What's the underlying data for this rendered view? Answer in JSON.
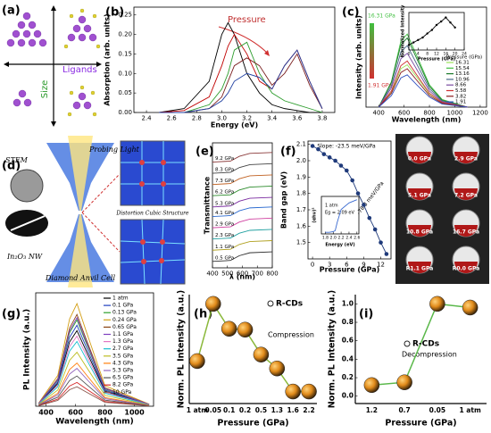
{
  "chart_data": [
    {
      "type": "line",
      "label": "(b)",
      "xlabel": "Energy (eV)",
      "ylabel": "Absorption (arb. units)",
      "xlim": [
        2.3,
        3.9
      ],
      "xticks": [
        2.4,
        2.6,
        2.8,
        {
          "value": 3,
          "label": "3.0"
        },
        3.2,
        3.4,
        3.6,
        3.8
      ],
      "ylim": [
        0,
        0.27
      ],
      "yticks": [
        {
          "value": 0,
          "label": "0.00"
        },
        0.05,
        {
          "value": 0.1,
          "label": "0.10"
        },
        0.15,
        {
          "value": 0.2,
          "label": "0.20"
        },
        0.25
      ],
      "annotations": [
        "Pressure"
      ],
      "x": [
        2.5,
        2.7,
        2.9,
        3.0,
        3.05,
        3.1,
        3.2,
        3.3,
        3.4,
        3.5,
        3.6,
        3.7,
        3.8
      ],
      "series": [
        {
          "color": "#000000",
          "values": [
            0,
            0.01,
            0.08,
            0.2,
            0.23,
            0.2,
            0.1,
            0.05,
            0.02,
            0.01,
            0.005,
            0,
            0
          ]
        },
        {
          "color": "#c00000",
          "values": [
            0,
            0.005,
            0.04,
            0.12,
            0.17,
            0.2,
            0.15,
            0.08,
            0.06,
            0.12,
            0.16,
            0.08,
            0.01
          ]
        },
        {
          "color": "#2e9d2e",
          "values": [
            0,
            0,
            0.02,
            0.06,
            0.1,
            0.16,
            0.18,
            0.1,
            0.05,
            0.03,
            0.02,
            0.01,
            0
          ]
        },
        {
          "color": "#7a1f1f",
          "values": [
            0,
            0,
            0.01,
            0.04,
            0.08,
            0.12,
            0.14,
            0.12,
            0.07,
            0.1,
            0.15,
            0.07,
            0.01
          ]
        },
        {
          "color": "#1f3fa0",
          "values": [
            0,
            0,
            0.01,
            0.03,
            0.05,
            0.08,
            0.1,
            0.09,
            0.06,
            0.12,
            0.16,
            0.08,
            0.01
          ]
        }
      ]
    },
    {
      "type": "line",
      "label": "(c)",
      "xlabel": "Wavelength (nm)",
      "ylabel": "Intensity (arb. units)",
      "xlim": [
        300,
        1250
      ],
      "xticks": [
        400,
        600,
        800,
        1000,
        1200
      ],
      "ylim": [
        0,
        1.3
      ],
      "legend": "right",
      "annotations": [
        "16.31 GPa",
        "1.91 GPa",
        "Pressure (GPa)"
      ],
      "x": [
        400,
        500,
        575,
        625,
        700,
        800,
        900,
        1100
      ],
      "series": [
        {
          "name": "16.31",
          "color": "#9be35a",
          "values": [
            0,
            0.19,
            0.5,
            0.55,
            0.39,
            0.17,
            0.06,
            0
          ]
        },
        {
          "name": "15.54",
          "color": "#3fbf3f",
          "values": [
            0,
            0.33,
            0.86,
            0.95,
            0.67,
            0.29,
            0.1,
            0
          ]
        },
        {
          "name": "13.16",
          "color": "#1a7a2a",
          "values": [
            0,
            0.32,
            0.81,
            0.9,
            0.63,
            0.27,
            0.09,
            0
          ]
        },
        {
          "name": "10.96",
          "color": "#4a6a8a",
          "values": [
            0,
            0.28,
            0.72,
            0.8,
            0.56,
            0.24,
            0.08,
            0
          ]
        },
        {
          "name": "8.66",
          "color": "#7a4aa0",
          "values": [
            0,
            0.25,
            0.63,
            0.7,
            0.49,
            0.21,
            0.07,
            0
          ]
        },
        {
          "name": "5.58",
          "color": "#d03030",
          "values": [
            0,
            0.21,
            0.54,
            0.6,
            0.42,
            0.18,
            0.06,
            0
          ]
        },
        {
          "name": "3.82",
          "color": "#8a1a1a",
          "values": [
            0,
            0.18,
            0.45,
            0.5,
            0.35,
            0.15,
            0.05,
            0
          ]
        },
        {
          "name": "1.91",
          "color": "#3050c0",
          "values": [
            0,
            0.15,
            0.38,
            0.42,
            0.29,
            0.13,
            0.04,
            0
          ]
        }
      ]
    },
    {
      "type": "line",
      "markers": true,
      "xlabel": "Pressure (GPa)",
      "ylabel": "Normalized Intensity",
      "xlim": [
        0,
        24
      ],
      "xticks": [
        0,
        4,
        8,
        12,
        16,
        20,
        24
      ],
      "ylim": [
        0.35,
        1.1
      ],
      "x": [
        0,
        2,
        4,
        6,
        8,
        10,
        12,
        14,
        16,
        18,
        20
      ],
      "series": [
        {
          "color": "#000000",
          "values": [
            0.45,
            0.5,
            0.55,
            0.6,
            0.68,
            0.75,
            0.85,
            0.92,
            1.0,
            0.9,
            0.8
          ]
        }
      ]
    },
    {
      "type": "line",
      "label": "(e)",
      "xlabel": "λ (nm)",
      "ylabel": "Transmittance",
      "xlim": [
        400,
        800
      ],
      "xticks": [
        400,
        500,
        600,
        700,
        800
      ],
      "ylim": [
        0,
        3.9
      ],
      "legend": "inline",
      "x": [
        400,
        520,
        580,
        650,
        800
      ],
      "series": [
        {
          "name": "9.2 GPa",
          "color": "#8b3a3a",
          "values": [
            3.3,
            3.33,
            3.48,
            3.57,
            3.6
          ]
        },
        {
          "name": "8.3 GPa",
          "color": "#444444",
          "values": [
            2.95,
            2.98,
            3.13,
            3.22,
            3.25
          ]
        },
        {
          "name": "7.3 GPa",
          "color": "#c06020",
          "values": [
            2.6,
            2.63,
            2.78,
            2.87,
            2.9
          ]
        },
        {
          "name": "6.2 GPa",
          "color": "#2a8a2a",
          "values": [
            2.25,
            2.28,
            2.43,
            2.52,
            2.55
          ]
        },
        {
          "name": "5.3 GPa",
          "color": "#7a2aa0",
          "values": [
            1.9,
            1.93,
            2.08,
            2.17,
            2.2
          ]
        },
        {
          "name": "4.1 GPa",
          "color": "#2a6ad0",
          "values": [
            1.6,
            1.63,
            1.78,
            1.87,
            1.9
          ]
        },
        {
          "name": "2.9 GPa",
          "color": "#d040a0",
          "values": [
            1.25,
            1.28,
            1.43,
            1.52,
            1.55
          ]
        },
        {
          "name": "2.3 GPa",
          "color": "#20a0a0",
          "values": [
            0.9,
            0.93,
            1.08,
            1.17,
            1.2
          ]
        },
        {
          "name": "1.1 GPa",
          "color": "#b0a020",
          "values": [
            0.55,
            0.58,
            0.73,
            0.82,
            0.85
          ]
        },
        {
          "name": "0.5 GPa",
          "color": "#303030",
          "values": [
            0.2,
            0.23,
            0.38,
            0.47,
            0.5
          ]
        }
      ]
    },
    {
      "type": "line",
      "markers": true,
      "label": "(f)",
      "xlabel": "Pressure (GPa)",
      "ylabel": "Band gap (eV)",
      "xlim": [
        -0.8,
        13.8
      ],
      "xticks": [
        0,
        3,
        6,
        9,
        12
      ],
      "ylim": [
        1.4,
        2.12
      ],
      "yticks": [
        1.5,
        1.6,
        1.7,
        1.8,
        1.9,
        {
          "value": 2,
          "label": "2.0"
        },
        2.1
      ],
      "annotations": [
        "Slope: -23.5 meV/GPa",
        "-78.3 meV/GPa"
      ],
      "x": [
        0,
        1,
        2,
        3,
        4,
        5,
        6,
        7,
        8,
        9,
        10,
        11,
        12,
        13
      ],
      "series": [
        {
          "color": "#1f3a7a",
          "values": [
            2.09,
            2.07,
            2.04,
            2.02,
            2.0,
            1.97,
            1.94,
            1.88,
            1.8,
            1.73,
            1.65,
            1.58,
            1.5,
            1.43
          ]
        }
      ]
    },
    {
      "type": "line",
      "xlabel": "Energy (eV)",
      "ylabel": "(αhν)²",
      "xlim": [
        1.7,
        2.65
      ],
      "xticks": [
        1.8,
        {
          "value": 2,
          "label": "2.0"
        },
        2.2,
        2.4,
        2.6
      ],
      "ylim": [
        -0.05,
        1.1
      ],
      "annotations": [
        "1 atm",
        "Eg = 2.09 eV"
      ],
      "x": [
        1.8,
        1.9,
        2.0,
        2.05,
        2.1,
        2.2,
        2.4,
        2.6
      ],
      "series": [
        {
          "color": "#3a6ad0",
          "values": [
            0,
            0,
            0.02,
            0.05,
            0.3,
            0.7,
            0.9,
            1.0
          ]
        }
      ]
    },
    {
      "type": "line",
      "label": "(g)",
      "xlabel": "Wavelength (nm)",
      "ylabel": "PL Intensity (a.u.)",
      "xlim": [
        330,
        1130
      ],
      "xticks": [
        400,
        600,
        800,
        1000
      ],
      "ylim": [
        0,
        1.05
      ],
      "legend": "upper right",
      "x": [
        350,
        480,
        560,
        610,
        680,
        800,
        1100
      ],
      "series": [
        {
          "name": "1 atm",
          "color": "#000000",
          "values": [
            0.021,
            0.21,
            0.595,
            0.7,
            0.49,
            0.14,
            0.014
          ]
        },
        {
          "name": "0.1 GPa",
          "color": "#1f3fbf",
          "values": [
            0.023,
            0.225,
            0.638,
            0.75,
            0.525,
            0.15,
            0.015
          ]
        },
        {
          "name": "0.13 GPa",
          "color": "#2ca02c",
          "values": [
            0.024,
            0.24,
            0.68,
            0.8,
            0.56,
            0.16,
            0.016
          ]
        },
        {
          "name": "0.24 GPa",
          "color": "#d4a017",
          "values": [
            0.029,
            0.285,
            0.808,
            0.95,
            0.665,
            0.19,
            0.019
          ]
        },
        {
          "name": "0.65 GPa",
          "color": "#8b4513",
          "values": [
            0.026,
            0.255,
            0.723,
            0.85,
            0.595,
            0.17,
            0.017
          ]
        },
        {
          "name": "1.1 GPa",
          "color": "#7f3fbf",
          "values": [
            0.025,
            0.246,
            0.697,
            0.82,
            0.574,
            0.164,
            0.016
          ]
        },
        {
          "name": "1.3 GPa",
          "color": "#e377c2",
          "values": [
            0.02,
            0.195,
            0.553,
            0.65,
            0.455,
            0.13,
            0.013
          ]
        },
        {
          "name": "2.7 GPa",
          "color": "#17becf",
          "values": [
            0.018,
            0.18,
            0.51,
            0.6,
            0.42,
            0.12,
            0.012
          ]
        },
        {
          "name": "3.5 GPa",
          "color": "#bcbd22",
          "values": [
            0.015,
            0.15,
            0.425,
            0.5,
            0.35,
            0.1,
            0.01
          ]
        },
        {
          "name": "4.3 GPa",
          "color": "#ff7f0e",
          "values": [
            0.012,
            0.12,
            0.34,
            0.4,
            0.28,
            0.08,
            0.008
          ]
        },
        {
          "name": "5.3 GPa",
          "color": "#9467bd",
          "values": [
            0.011,
            0.105,
            0.298,
            0.35,
            0.245,
            0.07,
            0.007
          ]
        },
        {
          "name": "6.5 GPa",
          "color": "#555555",
          "values": [
            0.008,
            0.084,
            0.238,
            0.28,
            0.196,
            0.056,
            0.006
          ]
        },
        {
          "name": "8.2 GPa",
          "color": "#d62728",
          "values": [
            0.007,
            0.066,
            0.187,
            0.22,
            0.154,
            0.044,
            0.004
          ]
        },
        {
          "name": "10 GPa",
          "color": "#8c564b",
          "values": [
            0.005,
            0.054,
            0.153,
            0.18,
            0.126,
            0.036,
            0.004
          ]
        }
      ]
    },
    {
      "type": "line",
      "markers": true,
      "label": "(h)",
      "xlabel": "Pressure (GPa)",
      "ylabel": "Norm. PL Intensity (a.u.)",
      "categories": [
        "1 atm",
        "0.05",
        "0.1",
        "0.2",
        "0.5",
        "1.3",
        "1.6",
        "2.2"
      ],
      "ylim": [
        -0.08,
        1.1
      ],
      "legend": "upper right",
      "annotations": [
        "Compression"
      ],
      "series": [
        {
          "name": "R-CDs",
          "color": "#8ab83a",
          "values": [
            0.38,
            1.0,
            0.73,
            0.72,
            0.45,
            0.3,
            0.05,
            0.05
          ]
        }
      ]
    },
    {
      "type": "line",
      "markers": true,
      "label": "(i)",
      "xlabel": "Pressure (GPa)",
      "ylabel": "Norm. PL Intensity (a.u.)",
      "categories": [
        "1.2",
        "0.7",
        "0.05",
        "1 atm"
      ],
      "ylim": [
        -0.08,
        1.1
      ],
      "yticks": [
        {
          "value": 0,
          "label": "0.0"
        },
        0.2,
        0.4,
        0.6,
        0.8,
        {
          "value": 1,
          "label": "1.0"
        }
      ],
      "legend": "upper right",
      "annotations": [
        "Decompression"
      ],
      "series": [
        {
          "name": "R-CDs",
          "color": "#5ab84a",
          "values": [
            0.12,
            0.15,
            1.0,
            0.96
          ]
        }
      ]
    }
  ],
  "figure": {
    "a": {
      "label": "(a)",
      "ligands": "Ligands",
      "size": "Size"
    },
    "d": {
      "label": "(d)",
      "stem": "STEM",
      "probing_light": "Probing Light",
      "structure": "Distortion Cubic Structure",
      "nanowire": "In₂O₃ NW",
      "cell": "Diamond Anvil Cell"
    },
    "photos": [
      "0.0 GPa",
      "2.9 GPa",
      "5.1 GPa",
      "7.2 GPa",
      "10.8 GPa",
      "16.7 GPa",
      "R1.1 GPa",
      "R0.0 GPa"
    ]
  }
}
